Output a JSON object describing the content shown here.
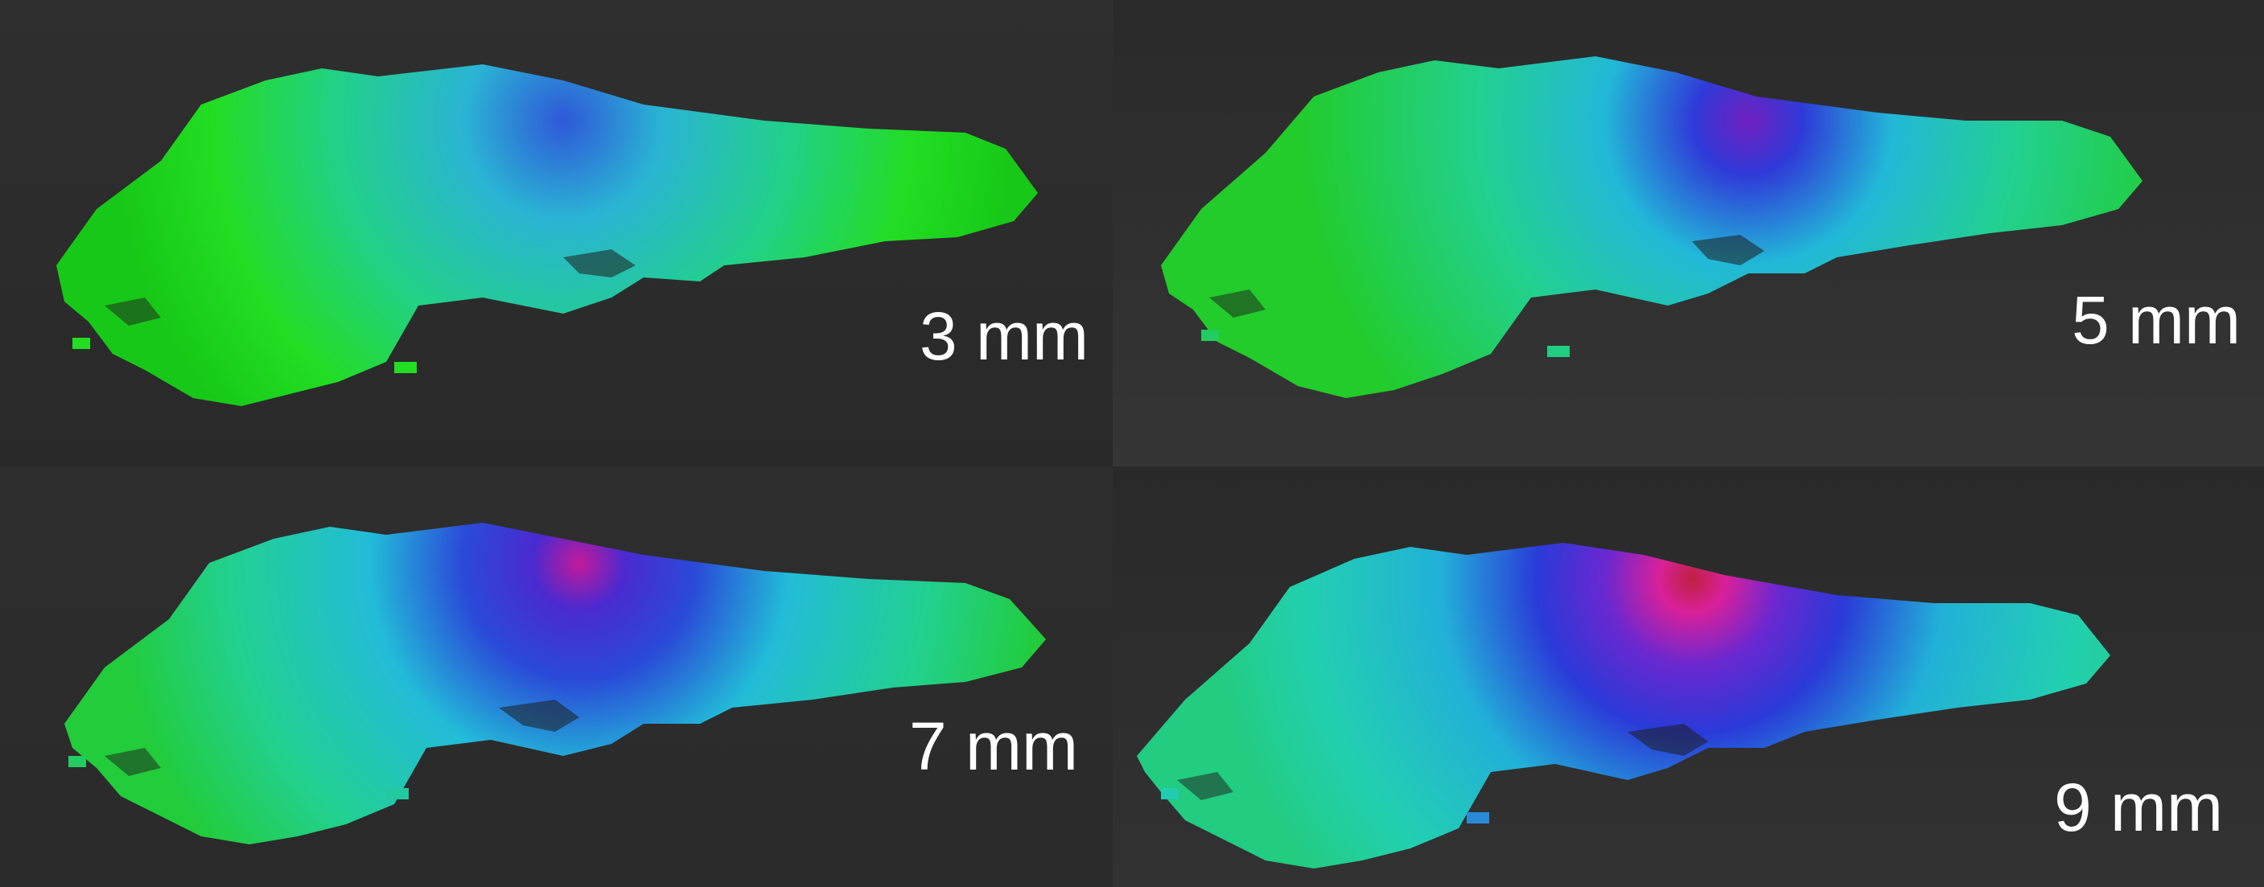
{
  "panels": [
    {
      "label": "3 mm"
    },
    {
      "label": "5 mm"
    },
    {
      "label": "7 mm"
    },
    {
      "label": "9 mm"
    }
  ],
  "colors": {
    "background": "#2b2b2b",
    "surface_low": "#22dd22",
    "surface_mid": "#22d4d4",
    "surface_high": "#2a2ad8",
    "surface_peak": "#e0208a",
    "label_text": "#ffffff"
  }
}
